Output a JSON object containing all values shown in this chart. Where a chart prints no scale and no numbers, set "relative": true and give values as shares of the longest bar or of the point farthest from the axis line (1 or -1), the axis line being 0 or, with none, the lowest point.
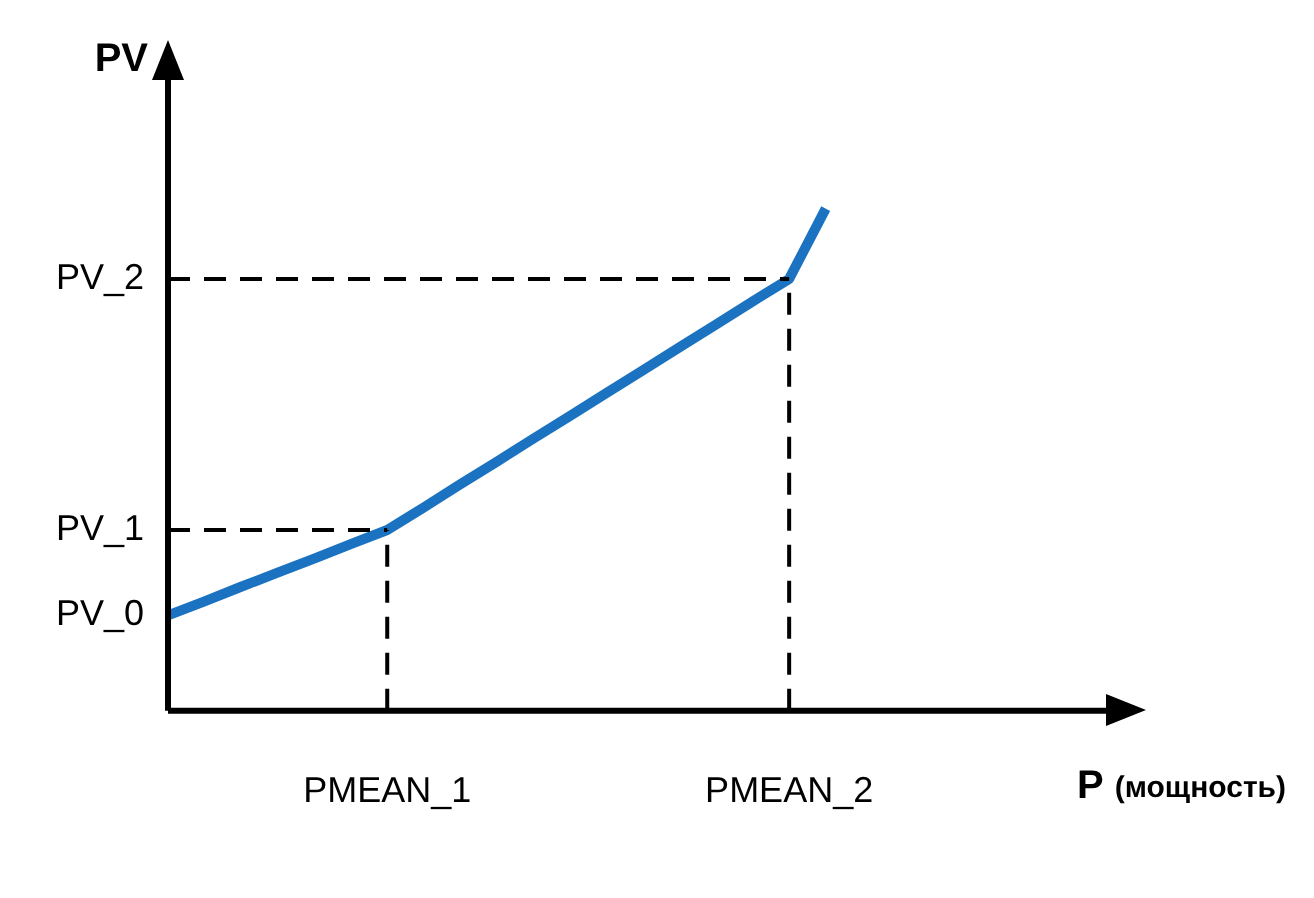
{
  "chart_data": {
    "type": "line",
    "xlabel": "P (мощность)",
    "ylabel": "PV",
    "relative": true,
    "categories": [
      null,
      null,
      null,
      null,
      null,
      null,
      "PMEAN_1",
      null,
      null,
      null,
      null,
      null,
      null,
      null,
      null,
      null,
      null,
      "PMEAN_2",
      null,
      null,
      null,
      null,
      null,
      null,
      null,
      null,
      null
    ],
    "series": [
      {
        "color": "#1a72c0",
        "values": [
          0.19,
          0.218,
          0.247,
          0.275,
          0.303,
          0.332,
          0.36,
          0.405,
          0.451,
          0.496,
          0.542,
          0.587,
          0.633,
          0.678,
          0.724,
          0.769,
          0.815,
          0.86,
          1,
          null,
          null,
          null,
          null,
          null,
          null,
          null,
          null
        ]
      }
    ],
    "ref_lines": [
      {
        "axis": "y",
        "value": 0.36,
        "label": "PV_1",
        "line_style": "dashed",
        "color": "#000000"
      },
      {
        "axis": "y",
        "value": 0.86,
        "label": "PV_2",
        "line_style": "dashed",
        "color": "#000000"
      },
      {
        "axis": "x",
        "value": "PMEAN_1",
        "line_style": "dashed",
        "color": "#000000"
      },
      {
        "axis": "x",
        "value": "PMEAN_2",
        "line_style": "dashed",
        "color": "#000000"
      }
    ],
    "annotations": [
      "PV_0"
    ],
    "legend": false,
    "marker": "none",
    "line_style": "solid"
  }
}
